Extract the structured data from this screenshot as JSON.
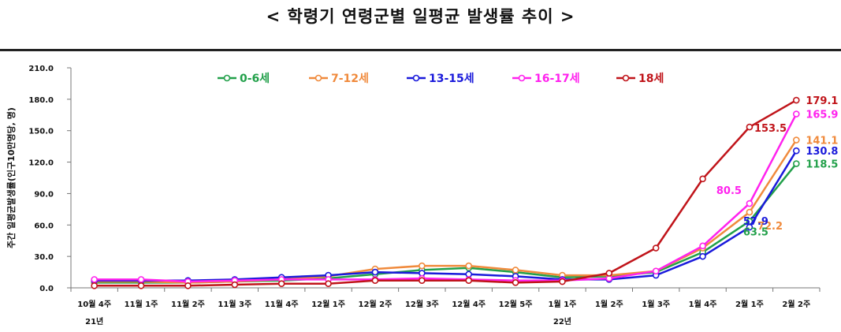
{
  "page": {
    "title": "< 학령기 연령군별 일평균 발생률 추이 >"
  },
  "chart_data": {
    "type": "line",
    "title": "< 학령기 연령군별 일평균 발생률 추이 >",
    "ylabel": "주간 일평균발생률(인구10만명당, 명)",
    "xlabel": "",
    "ylim": [
      0,
      210
    ],
    "yticks": [
      "0.0",
      "30.0",
      "60.0",
      "90.0",
      "120.0",
      "150.0",
      "180.0",
      "210.0"
    ],
    "ytick_values": [
      0,
      30,
      60,
      90,
      120,
      150,
      180,
      210
    ],
    "categories": [
      "10월 4주",
      "11월 1주",
      "11월 2주",
      "11월 3주",
      "11월 4주",
      "12월 1주",
      "12월 2주",
      "12월 3주",
      "12월 4주",
      "12월 5주",
      "1월 1주",
      "1월 2주",
      "1월 3주",
      "1월 4주",
      "2월 1주",
      "2월 2주"
    ],
    "year_labels": [
      {
        "index": 0,
        "label": "21년"
      },
      {
        "index": 10,
        "label": "22년"
      }
    ],
    "legend_position": "top",
    "grid": false,
    "series": [
      {
        "name": "0-6세",
        "color": "#22A04A",
        "values": [
          5,
          5,
          5,
          6,
          7,
          9,
          13,
          17,
          19,
          15,
          10,
          11,
          15,
          34,
          63.5,
          118.5
        ]
      },
      {
        "name": "7-12세",
        "color": "#F08A3C",
        "values": [
          6,
          6,
          5,
          6,
          8,
          11,
          18,
          21,
          21,
          17,
          12,
          12,
          16,
          38,
          72.2,
          141.1
        ]
      },
      {
        "name": "13-15세",
        "color": "#1A1ADB",
        "values": [
          7,
          7,
          7,
          8,
          10,
          12,
          15,
          14,
          13,
          11,
          8,
          8,
          12,
          30,
          57.9,
          130.8
        ]
      },
      {
        "name": "16-17세",
        "color": "#FF22EE",
        "values": [
          8,
          8,
          6,
          7,
          8,
          8,
          8,
          9,
          8,
          7,
          7,
          9,
          16,
          40,
          80.5,
          165.9
        ]
      },
      {
        "name": "18세",
        "color": "#C0141A",
        "values": [
          2,
          2,
          2,
          3,
          4,
          4,
          7,
          7,
          7,
          5,
          6,
          14,
          38,
          104,
          153.5,
          179.1
        ]
      }
    ],
    "data_labels": [
      {
        "series": 0,
        "index": 15,
        "text": "118.5"
      },
      {
        "series": 1,
        "index": 15,
        "text": "141.1"
      },
      {
        "series": 2,
        "index": 15,
        "text": "130.8"
      },
      {
        "series": 3,
        "index": 15,
        "text": "165.9"
      },
      {
        "series": 4,
        "index": 15,
        "text": "179.1"
      },
      {
        "series": 4,
        "index": 14,
        "text": "153.5"
      },
      {
        "series": 3,
        "index": 14,
        "text": "80.5"
      },
      {
        "series": 1,
        "index": 14,
        "text": "72.2"
      },
      {
        "series": 2,
        "index": 14,
        "text": "57.9"
      },
      {
        "series": 0,
        "index": 14,
        "text": "63.5"
      }
    ]
  }
}
